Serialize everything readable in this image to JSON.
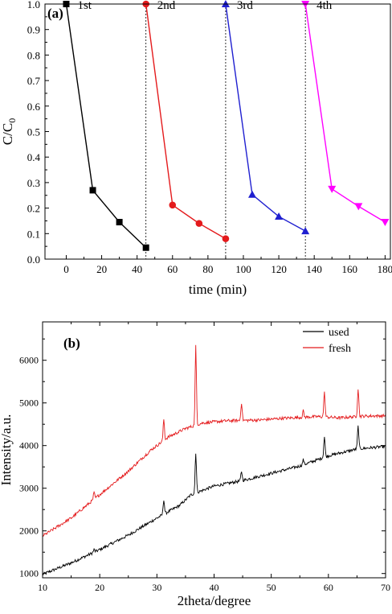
{
  "chart_data": [
    {
      "type": "line",
      "panel_label": "(a)",
      "xlabel": "time (min)",
      "ylabel_main": "C/C",
      "ylabel_sub": "0",
      "xlim": [
        -12,
        183
      ],
      "ylim": [
        0.0,
        1.0
      ],
      "xticks": [
        "0",
        "20",
        "40",
        "60",
        "80",
        "100",
        "120",
        "140",
        "160",
        "180"
      ],
      "yticks": [
        "0.0",
        "0.1",
        "0.2",
        "0.3",
        "0.4",
        "0.5",
        "0.6",
        "0.7",
        "0.8",
        "0.9",
        "1.0"
      ],
      "cycle_dividers_x": [
        45,
        90,
        135
      ],
      "series": [
        {
          "name": "1st",
          "color": "#000000",
          "marker": "square",
          "x": [
            0,
            15,
            30,
            45
          ],
          "y": [
            1.0,
            0.27,
            0.145,
            0.045
          ]
        },
        {
          "name": "2nd",
          "color": "#e41a1c",
          "marker": "circle",
          "x": [
            45,
            60,
            75,
            90
          ],
          "y": [
            1.0,
            0.212,
            0.14,
            0.08
          ]
        },
        {
          "name": "3rd",
          "color": "#1f1fd0",
          "marker": "triangle-up",
          "x": [
            90,
            105,
            120,
            135
          ],
          "y": [
            1.0,
            0.253,
            0.167,
            0.11
          ]
        },
        {
          "name": "4th",
          "color": "#ff00ff",
          "marker": "triangle-down",
          "x": [
            135,
            150,
            165,
            180
          ],
          "y": [
            1.0,
            0.275,
            0.207,
            0.145
          ]
        }
      ]
    },
    {
      "type": "line",
      "panel_label": "(b)",
      "xlabel": "2theta/degree",
      "ylabel": "Intensity/a.u.",
      "xlim": [
        10,
        70
      ],
      "ylim": [
        900,
        6900
      ],
      "xticks": [
        "10",
        "20",
        "30",
        "40",
        "50",
        "60",
        "70"
      ],
      "yticks": [
        "1000",
        "2000",
        "3000",
        "4000",
        "5000",
        "6000"
      ],
      "legend_position": "top-right",
      "series": [
        {
          "name": "used",
          "color": "#000000",
          "baseline": [
            [
              10,
              980
            ],
            [
              15,
              1250
            ],
            [
              20,
              1560
            ],
            [
              25,
              1900
            ],
            [
              30,
              2300
            ],
            [
              34,
              2600
            ],
            [
              36,
              2850
            ],
            [
              40,
              3050
            ],
            [
              45,
              3180
            ],
            [
              50,
              3350
            ],
            [
              55,
              3520
            ],
            [
              60,
              3760
            ],
            [
              65,
              3920
            ],
            [
              70,
              3980
            ]
          ],
          "peaks": [
            [
              19,
              60
            ],
            [
              31.2,
              350
            ],
            [
              36.8,
              950
            ],
            [
              44.8,
              220
            ],
            [
              55.6,
              120
            ],
            [
              59.3,
              480
            ],
            [
              65.2,
              530
            ]
          ]
        },
        {
          "name": "fresh",
          "color": "#e41a1c",
          "baseline": [
            [
              10,
              1880
            ],
            [
              15,
              2300
            ],
            [
              20,
              2850
            ],
            [
              25,
              3400
            ],
            [
              29,
              3900
            ],
            [
              32,
              4200
            ],
            [
              35,
              4400
            ],
            [
              38,
              4530
            ],
            [
              42,
              4580
            ],
            [
              48,
              4600
            ],
            [
              52,
              4640
            ],
            [
              58,
              4680
            ],
            [
              62,
              4650
            ],
            [
              66,
              4690
            ],
            [
              70,
              4700
            ]
          ],
          "peaks": [
            [
              19,
              150
            ],
            [
              31.2,
              500
            ],
            [
              36.8,
              1850
            ],
            [
              44.8,
              420
            ],
            [
              55.6,
              150
            ],
            [
              59.3,
              570
            ],
            [
              65.2,
              660
            ]
          ]
        }
      ]
    }
  ]
}
